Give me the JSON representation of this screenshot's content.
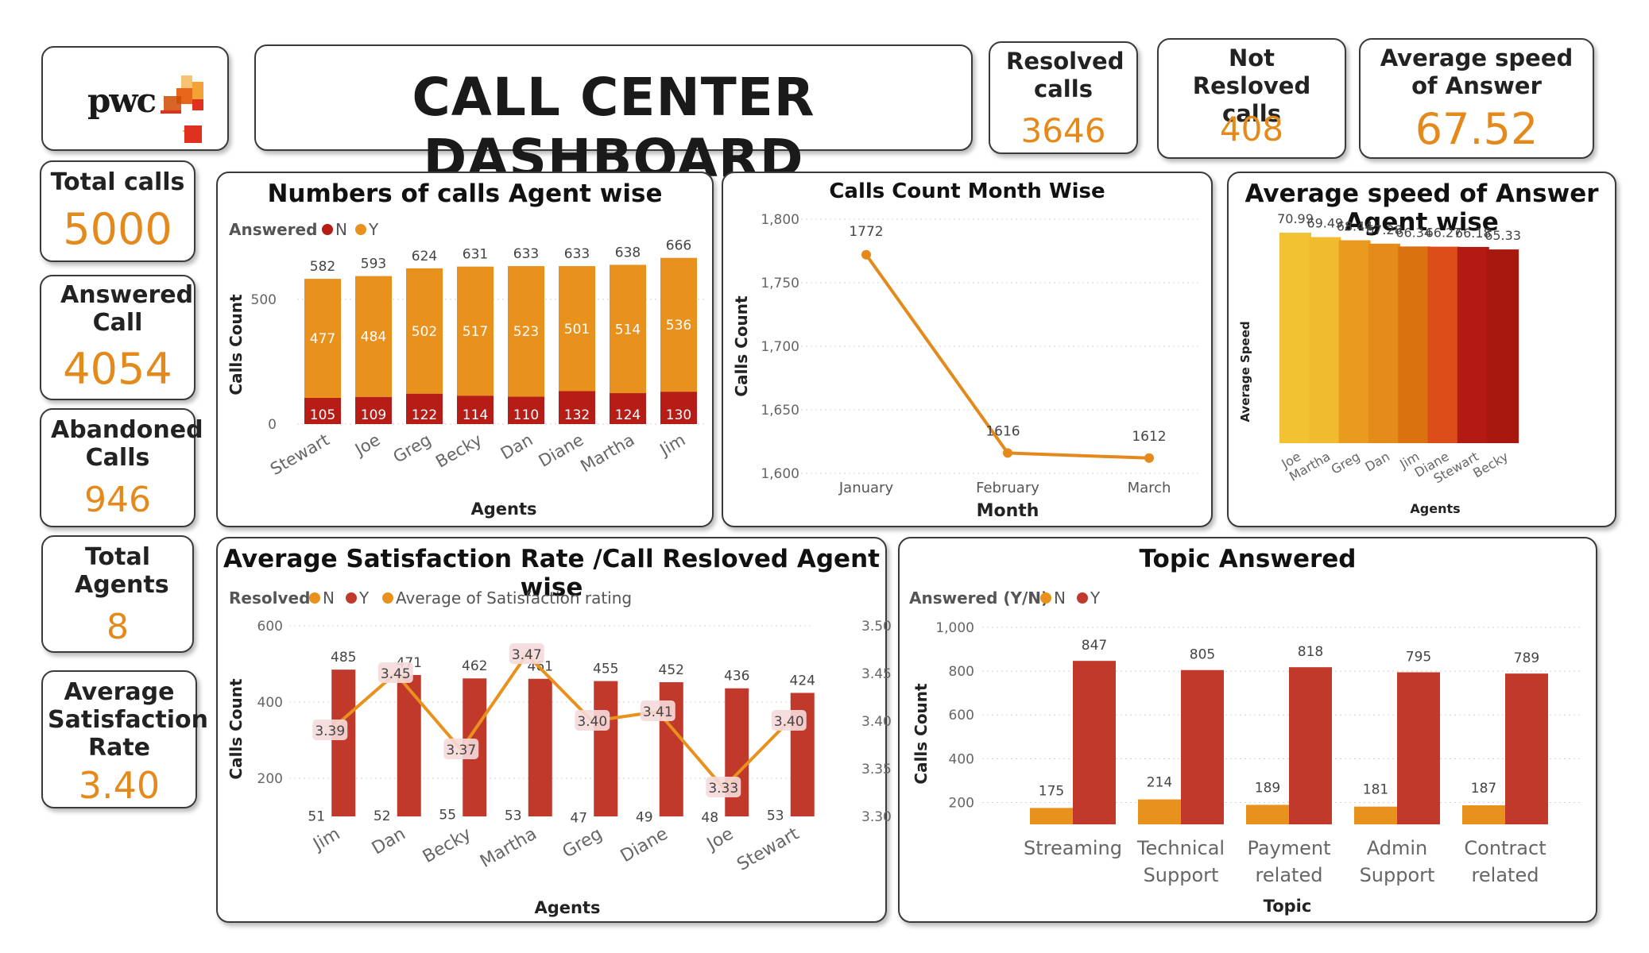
{
  "dashboard": {
    "title": "CALL CENTER DASHBOARD",
    "logo_text": "pwc"
  },
  "colors": {
    "accent": "#e48a1c",
    "bar_orange": "#e8911c",
    "bar_red": "#b51d16",
    "bar_crimson": "#c0392b"
  },
  "kpis": {
    "resolved": {
      "label": "Resolved calls",
      "value": "3646"
    },
    "not_resolved": {
      "label": "Not Resloved calls",
      "value": "408"
    },
    "avg_speed": {
      "label": "Average speed of Answer",
      "value": "67.52"
    },
    "total_calls": {
      "label": "Total calls",
      "value": "5000"
    },
    "answered": {
      "label": "Answered Call",
      "value": "4054"
    },
    "abandoned": {
      "label": "Abandoned Calls",
      "value": "946"
    },
    "total_agents": {
      "label": "Total Agents",
      "value": "8"
    },
    "avg_satisfaction": {
      "label": "Average Satisfaction Rate",
      "value": "3.40"
    }
  },
  "chart_data": [
    {
      "id": "agent_calls",
      "type": "bar",
      "stacked": true,
      "title": "Numbers of calls Agent wise",
      "legend_title": "Answered",
      "legend_position": "top-left",
      "xlabel": "Agents",
      "ylabel": "Calls Count",
      "categories": [
        "Stewart",
        "Joe",
        "Greg",
        "Becky",
        "Dan",
        "Diane",
        "Martha",
        "Jim"
      ],
      "series": [
        {
          "name": "N",
          "color": "#b51d16",
          "values": [
            105,
            109,
            122,
            114,
            110,
            132,
            124,
            130
          ]
        },
        {
          "name": "Y",
          "color": "#e8911c",
          "values": [
            477,
            484,
            502,
            517,
            523,
            501,
            514,
            536
          ]
        }
      ],
      "totals": [
        582,
        593,
        624,
        631,
        633,
        633,
        638,
        666
      ],
      "y_ticks": [
        "0",
        "500"
      ],
      "ylim": [
        0,
        700
      ],
      "grid": true
    },
    {
      "id": "month_calls",
      "type": "line",
      "title": "Calls Count Month Wise",
      "xlabel": "Month",
      "ylabel": "Calls Count",
      "categories": [
        "January",
        "February",
        "March"
      ],
      "values": [
        1772,
        1616,
        1612
      ],
      "y_ticks": [
        "1,600",
        "1,650",
        "1,700",
        "1,750",
        "1,800"
      ],
      "ylim": [
        1600,
        1800
      ],
      "color": "#e48a1c",
      "grid": true
    },
    {
      "id": "avg_speed",
      "type": "bar",
      "title": "Average speed of Answer Agent wise",
      "xlabel": "Agents",
      "ylabel": "Average Speed",
      "categories": [
        "Joe",
        "Martha",
        "Greg",
        "Dan",
        "Jim",
        "Diane",
        "Stewart",
        "Becky"
      ],
      "values": [
        70.99,
        69.49,
        68.44,
        67.28,
        66.34,
        66.27,
        66.18,
        65.33
      ],
      "labels": [
        "70.99",
        "69.49",
        "68.44",
        "67.28",
        "66.34",
        "66.27",
        "66.18",
        "65.33"
      ],
      "colors": [
        "#f2c232",
        "#f0bb2e",
        "#ea9b1f",
        "#e58b1b",
        "#d9720f",
        "#dc4d1a",
        "#b21a13",
        "#a8180f"
      ],
      "ylim": [
        0,
        75
      ]
    },
    {
      "id": "satisfaction",
      "type": "bar",
      "combo_line": true,
      "title": "Average Satisfaction Rate /Call Resloved Agent wise",
      "legend_title": "Resolved",
      "legend_entries": [
        "N",
        "Y",
        "Average of Satisfaction rating"
      ],
      "legend_position": "top-left",
      "xlabel": "Agents",
      "ylabel": "Calls Count",
      "categories": [
        "Jim",
        "Dan",
        "Becky",
        "Martha",
        "Greg",
        "Diane",
        "Joe",
        "Stewart"
      ],
      "series": [
        {
          "name": "N",
          "color": "#e8911c",
          "values": [
            51,
            52,
            55,
            53,
            47,
            49,
            48,
            53
          ]
        },
        {
          "name": "Y",
          "color": "#c0392b",
          "values": [
            485,
            471,
            462,
            461,
            455,
            452,
            436,
            424
          ]
        },
        {
          "name": "Average of Satisfaction rating",
          "color": "#e8911c",
          "axis": "right",
          "values": [
            3.39,
            3.45,
            3.37,
            3.47,
            3.4,
            3.41,
            3.33,
            3.4
          ],
          "labels": [
            "3.39",
            "3.45",
            "3.37",
            "3.47",
            "3.40",
            "3.41",
            "3.33",
            "3.40"
          ]
        }
      ],
      "y_ticks": [
        "200",
        "400",
        "600"
      ],
      "ylim": [
        100,
        600
      ],
      "y2_ticks": [
        "3.30",
        "3.35",
        "3.40",
        "3.45",
        "3.50"
      ],
      "y2lim": [
        3.3,
        3.5
      ],
      "grid": true
    },
    {
      "id": "topic",
      "type": "bar",
      "title": "Topic Answered",
      "legend_title": "Answered (Y/N)",
      "legend_position": "top-left",
      "xlabel": "Topic",
      "ylabel": "Calls Count",
      "categories": [
        [
          "Streaming"
        ],
        [
          "Technical",
          "Support"
        ],
        [
          "Payment",
          "related"
        ],
        [
          "Admin",
          "Support"
        ],
        [
          "Contract",
          "related"
        ]
      ],
      "series": [
        {
          "name": "N",
          "color": "#e8911c",
          "values": [
            175,
            214,
            189,
            181,
            187
          ]
        },
        {
          "name": "Y",
          "color": "#c0392b",
          "values": [
            847,
            805,
            818,
            795,
            789
          ]
        }
      ],
      "y_ticks": [
        "200",
        "400",
        "600",
        "800",
        "1,000"
      ],
      "ylim": [
        100,
        1000
      ],
      "grid": true
    }
  ]
}
